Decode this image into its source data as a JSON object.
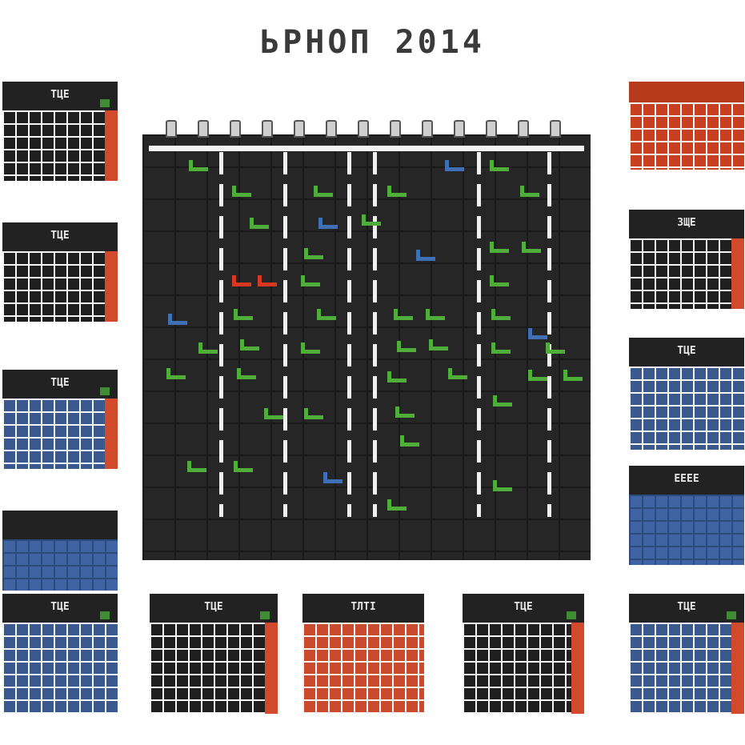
{
  "title": "ЬРНОП 2014",
  "colors": {
    "board": "#262626",
    "green": "#4fae3a",
    "blue": "#3f6fb5",
    "red": "#d7391f"
  },
  "minis": [
    {
      "label": "ТЦЕ",
      "variant": "dark"
    },
    {
      "label": "ТЦЕ",
      "variant": "dark"
    },
    {
      "label": "ТЦЕ",
      "variant": "blue"
    },
    {
      "label": "",
      "variant": "solid"
    },
    {
      "label": "ТЦЕ",
      "variant": "dark"
    },
    {
      "label": "ТЦЕ",
      "variant": "dark"
    },
    {
      "label": "ТЛТІ",
      "variant": "dark"
    },
    {
      "label": "ТЦЕ",
      "variant": "dark"
    },
    {
      "label": "ТЦЕ",
      "variant": "blue"
    },
    {
      "label": "ТЦЕ",
      "variant": "blue"
    },
    {
      "label": "ЗЩЕ",
      "variant": "dark"
    },
    {
      "label": "ТЦЕ",
      "variant": "blue"
    },
    {
      "label": "ЕЕЕЕ",
      "variant": "solid"
    },
    {
      "label": "",
      "variant": "red"
    }
  ]
}
